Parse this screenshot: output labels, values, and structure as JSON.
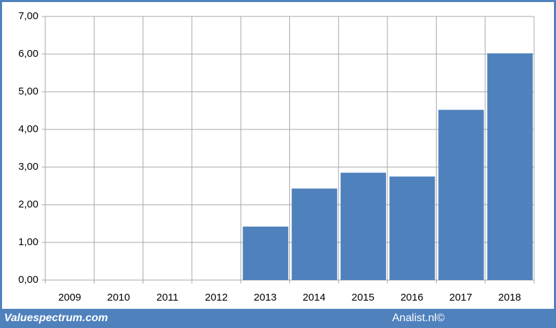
{
  "chart_data": {
    "type": "bar",
    "categories": [
      "2009",
      "2010",
      "2011",
      "2012",
      "2013",
      "2014",
      "2015",
      "2016",
      "2017",
      "2018"
    ],
    "values": [
      null,
      null,
      null,
      null,
      1.42,
      2.43,
      2.85,
      2.75,
      4.52,
      6.02
    ],
    "color": "#4f81bd",
    "ylim": [
      0,
      7
    ],
    "yticks": [
      {
        "value": 0,
        "label": "0,00"
      },
      {
        "value": 1,
        "label": "1,00"
      },
      {
        "value": 2,
        "label": "2,00"
      },
      {
        "value": 3,
        "label": "3,00"
      },
      {
        "value": 4,
        "label": "4,00"
      },
      {
        "value": 5,
        "label": "5,00"
      },
      {
        "value": 6,
        "label": "6,00"
      },
      {
        "value": 7,
        "label": "7,00"
      }
    ],
    "grid": true
  },
  "footer": {
    "site": "Valuespectrum.com",
    "credit": "Analist.nl©"
  }
}
